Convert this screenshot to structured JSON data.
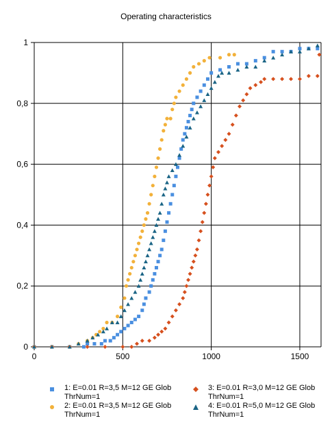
{
  "chart_data": {
    "type": "scatter",
    "title": "Operating characteristics",
    "xlabel": "",
    "ylabel": "",
    "xlim": [
      0,
      1620
    ],
    "ylim": [
      0,
      1
    ],
    "x_ticks": [
      "0",
      "500",
      "1000",
      "1500"
    ],
    "x_tick_values": [
      0,
      500,
      1000,
      1500
    ],
    "y_ticks": [
      "0",
      "0,2",
      "0,4",
      "0,6",
      "0,8",
      "1"
    ],
    "y_tick_values": [
      0,
      0.2,
      0.4,
      0.6,
      0.8,
      1
    ],
    "grid": true,
    "legend_position": "bottom",
    "series": [
      {
        "name": "1: E=0.01 R=3,5 M=12 GE Glob\nThrNum=1",
        "color": "#4a8fe0",
        "marker": "square",
        "points": [
          [
            0,
            0
          ],
          [
            100,
            0
          ],
          [
            200,
            0
          ],
          [
            280,
            0
          ],
          [
            300,
            0.01
          ],
          [
            340,
            0.01
          ],
          [
            380,
            0.01
          ],
          [
            400,
            0.02
          ],
          [
            430,
            0.02
          ],
          [
            450,
            0.03
          ],
          [
            470,
            0.04
          ],
          [
            490,
            0.05
          ],
          [
            510,
            0.06
          ],
          [
            530,
            0.07
          ],
          [
            550,
            0.08
          ],
          [
            570,
            0.09
          ],
          [
            590,
            0.1
          ],
          [
            610,
            0.12
          ],
          [
            620,
            0.14
          ],
          [
            630,
            0.16
          ],
          [
            650,
            0.18
          ],
          [
            660,
            0.2
          ],
          [
            670,
            0.22
          ],
          [
            680,
            0.24
          ],
          [
            690,
            0.26
          ],
          [
            700,
            0.28
          ],
          [
            710,
            0.3
          ],
          [
            720,
            0.32
          ],
          [
            730,
            0.35
          ],
          [
            740,
            0.38
          ],
          [
            750,
            0.41
          ],
          [
            760,
            0.44
          ],
          [
            770,
            0.47
          ],
          [
            780,
            0.5
          ],
          [
            790,
            0.53
          ],
          [
            800,
            0.56
          ],
          [
            810,
            0.59
          ],
          [
            820,
            0.62
          ],
          [
            830,
            0.65
          ],
          [
            840,
            0.68
          ],
          [
            850,
            0.7
          ],
          [
            860,
            0.72
          ],
          [
            870,
            0.74
          ],
          [
            880,
            0.76
          ],
          [
            890,
            0.78
          ],
          [
            900,
            0.8
          ],
          [
            920,
            0.82
          ],
          [
            940,
            0.84
          ],
          [
            960,
            0.86
          ],
          [
            980,
            0.88
          ],
          [
            1000,
            0.9
          ],
          [
            1050,
            0.91
          ],
          [
            1100,
            0.92
          ],
          [
            1150,
            0.93
          ],
          [
            1200,
            0.93
          ],
          [
            1250,
            0.94
          ],
          [
            1300,
            0.95
          ],
          [
            1350,
            0.97
          ],
          [
            1400,
            0.97
          ],
          [
            1450,
            0.97
          ],
          [
            1500,
            0.98
          ],
          [
            1550,
            0.98
          ],
          [
            1600,
            0.98
          ]
        ]
      },
      {
        "name": "2: E=0.01 R=3,5 M=12 GE Glob\nThrNum=1",
        "color": "#f2b13a",
        "marker": "circle",
        "points": [
          [
            0,
            0
          ],
          [
            100,
            0
          ],
          [
            200,
            0
          ],
          [
            250,
            0.01
          ],
          [
            300,
            0.02
          ],
          [
            330,
            0.03
          ],
          [
            350,
            0.04
          ],
          [
            370,
            0.05
          ],
          [
            390,
            0.06
          ],
          [
            410,
            0.08
          ],
          [
            440,
            0.08
          ],
          [
            470,
            0.1
          ],
          [
            490,
            0.13
          ],
          [
            510,
            0.16
          ],
          [
            520,
            0.2
          ],
          [
            530,
            0.22
          ],
          [
            540,
            0.24
          ],
          [
            550,
            0.26
          ],
          [
            560,
            0.28
          ],
          [
            570,
            0.3
          ],
          [
            580,
            0.32
          ],
          [
            590,
            0.34
          ],
          [
            600,
            0.36
          ],
          [
            610,
            0.38
          ],
          [
            620,
            0.4
          ],
          [
            630,
            0.42
          ],
          [
            640,
            0.44
          ],
          [
            650,
            0.47
          ],
          [
            660,
            0.5
          ],
          [
            670,
            0.53
          ],
          [
            680,
            0.56
          ],
          [
            690,
            0.59
          ],
          [
            700,
            0.62
          ],
          [
            710,
            0.65
          ],
          [
            720,
            0.68
          ],
          [
            730,
            0.71
          ],
          [
            740,
            0.73
          ],
          [
            750,
            0.75
          ],
          [
            770,
            0.75
          ],
          [
            780,
            0.78
          ],
          [
            790,
            0.8
          ],
          [
            800,
            0.82
          ],
          [
            820,
            0.84
          ],
          [
            840,
            0.86
          ],
          [
            860,
            0.88
          ],
          [
            880,
            0.9
          ],
          [
            900,
            0.92
          ],
          [
            930,
            0.93
          ],
          [
            960,
            0.94
          ],
          [
            990,
            0.95
          ],
          [
            1050,
            0.95
          ],
          [
            1100,
            0.96
          ],
          [
            1130,
            0.96
          ]
        ]
      },
      {
        "name": "3: E=0.01 R=3,0 M=12 GE Glob\nThrNum=1",
        "color": "#d6501e",
        "marker": "diamond",
        "points": [
          [
            0,
            0
          ],
          [
            100,
            0
          ],
          [
            200,
            0
          ],
          [
            300,
            0
          ],
          [
            400,
            0
          ],
          [
            500,
            0
          ],
          [
            550,
            0
          ],
          [
            580,
            0.01
          ],
          [
            610,
            0.02
          ],
          [
            650,
            0.02
          ],
          [
            680,
            0.03
          ],
          [
            700,
            0.04
          ],
          [
            720,
            0.05
          ],
          [
            740,
            0.06
          ],
          [
            760,
            0.08
          ],
          [
            780,
            0.1
          ],
          [
            800,
            0.12
          ],
          [
            820,
            0.14
          ],
          [
            840,
            0.16
          ],
          [
            850,
            0.18
          ],
          [
            860,
            0.2
          ],
          [
            870,
            0.22
          ],
          [
            880,
            0.24
          ],
          [
            890,
            0.26
          ],
          [
            900,
            0.28
          ],
          [
            910,
            0.3
          ],
          [
            920,
            0.32
          ],
          [
            930,
            0.35
          ],
          [
            940,
            0.38
          ],
          [
            950,
            0.41
          ],
          [
            960,
            0.44
          ],
          [
            970,
            0.47
          ],
          [
            980,
            0.5
          ],
          [
            990,
            0.53
          ],
          [
            1000,
            0.56
          ],
          [
            1010,
            0.59
          ],
          [
            1020,
            0.62
          ],
          [
            1040,
            0.64
          ],
          [
            1060,
            0.66
          ],
          [
            1080,
            0.68
          ],
          [
            1100,
            0.7
          ],
          [
            1120,
            0.73
          ],
          [
            1140,
            0.76
          ],
          [
            1160,
            0.79
          ],
          [
            1180,
            0.81
          ],
          [
            1200,
            0.83
          ],
          [
            1220,
            0.85
          ],
          [
            1250,
            0.86
          ],
          [
            1280,
            0.87
          ],
          [
            1300,
            0.88
          ],
          [
            1350,
            0.88
          ],
          [
            1400,
            0.88
          ],
          [
            1450,
            0.88
          ],
          [
            1500,
            0.88
          ],
          [
            1550,
            0.89
          ],
          [
            1600,
            0.89
          ],
          [
            1610,
            0.96
          ]
        ]
      },
      {
        "name": "4: E=0.01 R=5,0 M=12 GE Glob\nThrNum=1",
        "color": "#1a6485",
        "marker": "triangle",
        "points": [
          [
            0,
            0
          ],
          [
            100,
            0
          ],
          [
            200,
            0
          ],
          [
            250,
            0.01
          ],
          [
            300,
            0.02
          ],
          [
            330,
            0.03
          ],
          [
            360,
            0.04
          ],
          [
            390,
            0.05
          ],
          [
            410,
            0.06
          ],
          [
            440,
            0.08
          ],
          [
            470,
            0.08
          ],
          [
            490,
            0.1
          ],
          [
            510,
            0.12
          ],
          [
            530,
            0.14
          ],
          [
            550,
            0.16
          ],
          [
            570,
            0.18
          ],
          [
            590,
            0.2
          ],
          [
            600,
            0.22
          ],
          [
            610,
            0.24
          ],
          [
            620,
            0.26
          ],
          [
            630,
            0.28
          ],
          [
            640,
            0.3
          ],
          [
            650,
            0.32
          ],
          [
            660,
            0.34
          ],
          [
            670,
            0.36
          ],
          [
            680,
            0.38
          ],
          [
            690,
            0.4
          ],
          [
            700,
            0.42
          ],
          [
            710,
            0.44
          ],
          [
            720,
            0.47
          ],
          [
            730,
            0.5
          ],
          [
            740,
            0.52
          ],
          [
            750,
            0.54
          ],
          [
            760,
            0.56
          ],
          [
            780,
            0.58
          ],
          [
            800,
            0.6
          ],
          [
            820,
            0.63
          ],
          [
            840,
            0.66
          ],
          [
            860,
            0.69
          ],
          [
            880,
            0.72
          ],
          [
            900,
            0.75
          ],
          [
            920,
            0.77
          ],
          [
            940,
            0.79
          ],
          [
            960,
            0.81
          ],
          [
            980,
            0.83
          ],
          [
            1000,
            0.85
          ],
          [
            1020,
            0.87
          ],
          [
            1040,
            0.89
          ],
          [
            1060,
            0.9
          ],
          [
            1100,
            0.9
          ],
          [
            1150,
            0.91
          ],
          [
            1200,
            0.92
          ],
          [
            1250,
            0.92
          ],
          [
            1300,
            0.94
          ],
          [
            1350,
            0.95
          ],
          [
            1400,
            0.96
          ],
          [
            1450,
            0.97
          ],
          [
            1500,
            0.97
          ],
          [
            1550,
            0.98
          ],
          [
            1600,
            0.99
          ]
        ]
      }
    ]
  }
}
